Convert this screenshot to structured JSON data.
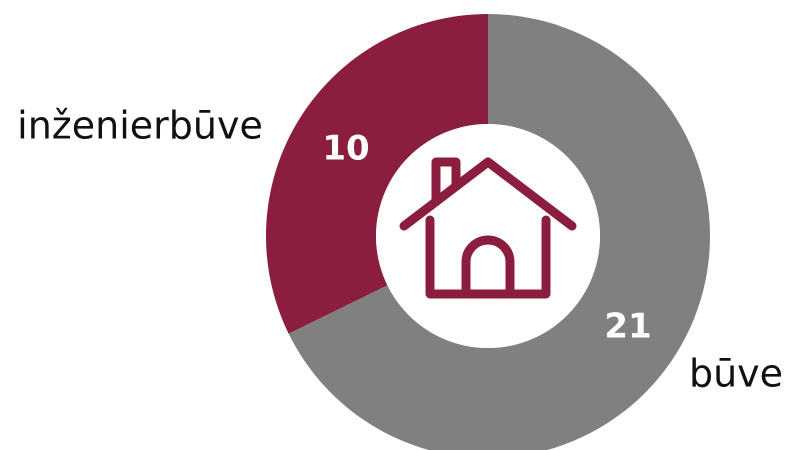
{
  "chart_data": {
    "type": "pie",
    "style": "donut",
    "categories": [
      "inženierbūve",
      "būve"
    ],
    "values": [
      10,
      21
    ],
    "colors": [
      "#8b1e3f",
      "#808080"
    ],
    "value_label_color": "#ffffff",
    "center_icon": "house-icon",
    "center_icon_color": "#8b1e3f",
    "legend": "outside-labels"
  }
}
